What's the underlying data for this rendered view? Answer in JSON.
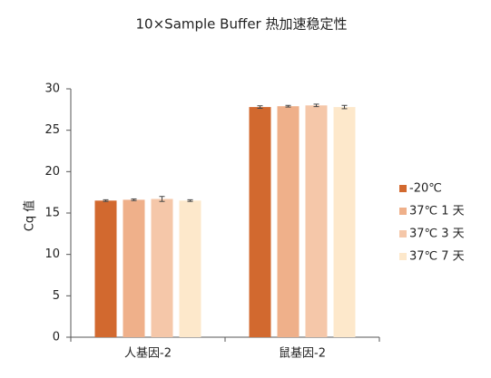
{
  "chart_data": {
    "type": "bar",
    "title": "10×Sample Buffer 热加速稳定性",
    "y_label": "Cq 值",
    "categories": [
      "人基因-2",
      "鼠基因-2"
    ],
    "series": [
      {
        "name": "-20℃",
        "color": "#d2692f",
        "values": [
          16.5,
          27.8
        ],
        "errors": [
          0.1,
          0.15
        ]
      },
      {
        "name": "37℃ 1 天",
        "color": "#efb08a",
        "values": [
          16.6,
          27.9
        ],
        "errors": [
          0.1,
          0.1
        ]
      },
      {
        "name": "37℃ 3 天",
        "color": "#f5c7a9",
        "values": [
          16.7,
          28.0
        ],
        "errors": [
          0.3,
          0.15
        ]
      },
      {
        "name": "37℃ 7 天",
        "color": "#fde8cb",
        "values": [
          16.5,
          27.8
        ],
        "errors": [
          0.1,
          0.2
        ]
      }
    ],
    "ylim": [
      0,
      30
    ],
    "yticks": [
      0,
      5,
      10,
      15,
      20,
      25,
      30
    ],
    "legend": "right"
  }
}
